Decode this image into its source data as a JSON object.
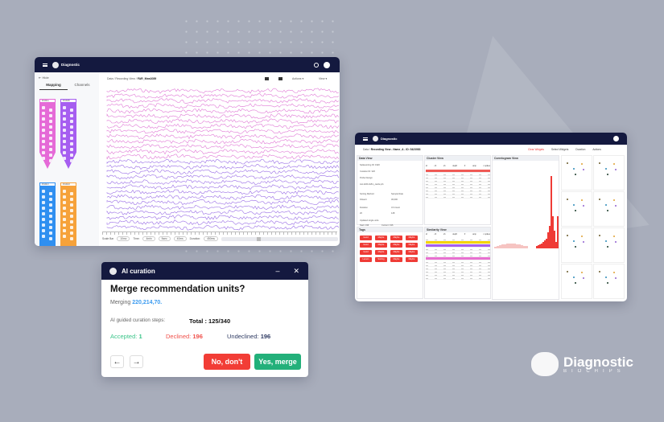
{
  "left_window": {
    "app_name": "Diagnostic",
    "sidebar": {
      "hide_label": "Hide",
      "tabs": [
        "Mapping",
        "Channels"
      ],
      "probes": [
        {
          "label": "P-100-A",
          "color": "#e56ad7"
        },
        {
          "label": "P-100-B",
          "color": "#a65ef0"
        },
        {
          "label": "P-100-C",
          "color": "#2f8ff0"
        },
        {
          "label": "P-100-D",
          "color": "#f6a23a"
        }
      ]
    },
    "breadcrumb": [
      "Data",
      "Recording View",
      "FAR_Mea1089"
    ],
    "menus": [
      "Actions",
      "View"
    ],
    "footer": {
      "scale_bar_label": "Scale Bar",
      "scale_value": "10mv",
      "time_label": "Time:",
      "time_values": [
        "4min",
        "5sec",
        "40ms"
      ],
      "duration_label": "Duration:",
      "duration_value": "450ms"
    },
    "trace_colors": {
      "top": "#e07ad6",
      "bottom": "#9a6ee6"
    }
  },
  "dialog": {
    "title": "AI curation",
    "heading": "Merge recommendation units?",
    "merging_label": "Merging",
    "merging_value": "220,214,70.",
    "steps_label": "AI guided curation steps:",
    "total": "Total : 125/340",
    "accepted_label": "Accepted:",
    "accepted_value": "1",
    "declined_label": "Declined:",
    "declined_value": "196",
    "undeclined_label": "Undeclined:",
    "undeclined_value": "196",
    "decline_button": "No, don't",
    "accept_button": "Yes, merge",
    "colors": {
      "accepted": "#3cc58a",
      "declined": "#f0504a",
      "undeclined": "#2f3b63",
      "link": "#3b9bf0",
      "decline": "#f23d36",
      "accept": "#23b07a"
    }
  },
  "right_window": {
    "app_name": "Diagnostic",
    "breadcrumb": [
      "Data",
      "Recording View - Name_A - ID: 5423083"
    ],
    "menus": [
      "Clear Widgets",
      "Select Widgets",
      "Duration",
      "Actions"
    ],
    "data_view": {
      "title": "Data View",
      "fields": [
        "Spikesorting ID: 1920",
        "Curation ID: 320",
        "Probe Design",
        "AH-1136-3x8m_cards.prb",
        "Sorting Method",
        "Sample Rate",
        "Kilosort",
        "30,000",
        "Duration",
        "Ch Count",
        "20",
        "128",
        "Updated single units",
        "Start: 196",
        "Current: 196"
      ]
    },
    "cluster_view": {
      "title": "Cluster View",
      "columns": [
        "id",
        "ch",
        "sh",
        "depth",
        "fr",
        "amp",
        "n spikes"
      ]
    },
    "correlogram_view": {
      "title": "Correlogram View"
    },
    "tags": {
      "title": "Tags",
      "items": [
        "Good",
        "Maybe",
        "Maybe",
        "Maybe",
        "Good",
        "Maybe",
        "Maybe",
        "Maybe",
        "Good",
        "Maybe",
        "Maybe",
        "Maybe",
        "Lemon",
        "Sorting",
        "Maybe",
        "Maybe"
      ]
    },
    "similarity_view": {
      "title": "Similarity View",
      "highlight_colors": [
        "#f5d300",
        "#a65ef0",
        "#e870d0"
      ]
    }
  },
  "brand": {
    "name": "Diagnostic",
    "sub": "BIOCHIPS"
  }
}
